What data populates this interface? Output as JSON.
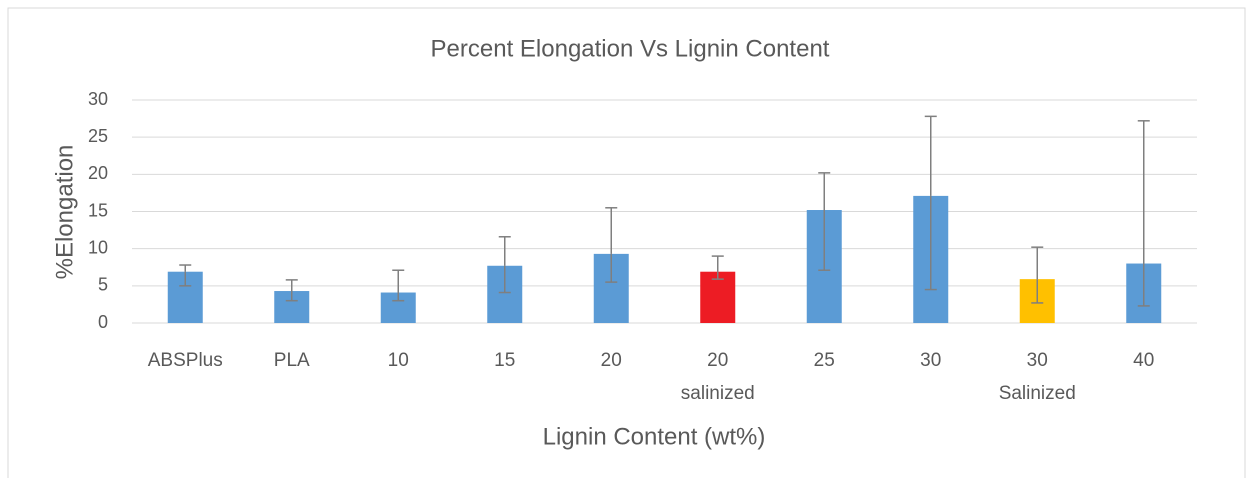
{
  "chart_data": {
    "type": "bar",
    "title": "Percent Elongation Vs Lignin Content",
    "x_label": "Lignin Content (wt%)",
    "y_label": "%Elongation",
    "categories": [
      "ABSPlus",
      "PLA",
      "10",
      "15",
      "20",
      "20\nsalinized",
      "25",
      "30",
      "30\nSalinized",
      "40"
    ],
    "values": [
      6.9,
      4.3,
      4.1,
      7.7,
      9.3,
      6.9,
      15.2,
      17.1,
      5.9,
      8.0
    ],
    "error_plus": [
      0.9,
      1.5,
      3.0,
      3.9,
      6.2,
      2.1,
      5.0,
      10.7,
      4.3,
      19.2
    ],
    "error_minus": [
      1.9,
      1.3,
      1.1,
      3.6,
      3.8,
      1.0,
      8.1,
      12.6,
      3.2,
      5.7
    ],
    "colors": [
      "#5b9bd5",
      "#5b9bd5",
      "#5b9bd5",
      "#5b9bd5",
      "#5b9bd5",
      "#ed1c24",
      "#5b9bd5",
      "#5b9bd5",
      "#ffc000",
      "#5b9bd5"
    ],
    "error_color": "#7f7f7f",
    "ylim": [
      0,
      30
    ],
    "yticks": [
      0,
      5,
      10,
      15,
      20,
      25,
      30
    ],
    "grid": true
  }
}
